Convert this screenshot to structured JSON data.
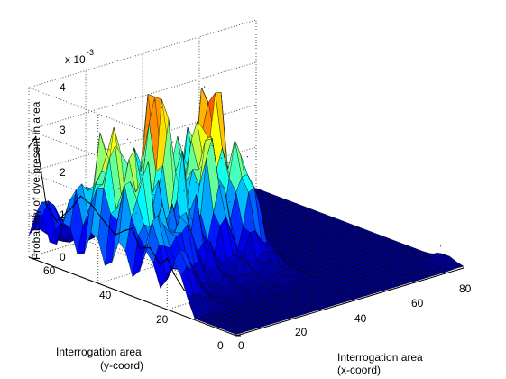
{
  "chart_data": {
    "type": "surface",
    "title": "",
    "zlabel": "Probability of dye present in area",
    "x_axis_label": [
      "Interrogation area",
      "(x-coord)"
    ],
    "y_axis_label": [
      "Interrogation area",
      "(y-coord)"
    ],
    "z_multiplier": {
      "base": "x 10",
      "exponent": "-3"
    },
    "x_range": [
      0,
      80
    ],
    "y_range": [
      0,
      60
    ],
    "z_range": [
      0,
      4
    ],
    "x_ticks": [
      "0",
      "20",
      "40",
      "60",
      "80"
    ],
    "y_ticks": [
      "0",
      "20",
      "40",
      "60"
    ],
    "z_ticks": [
      "0",
      "1",
      "2",
      "3",
      "4"
    ],
    "colormap": [
      "#000080",
      "#0000ff",
      "#00ffff",
      "#ffff00",
      "#ff0000"
    ],
    "grid": true,
    "back_wall_profile": {
      "axis": "y at x=0",
      "y": [
        60,
        58,
        55,
        52,
        48,
        45,
        42,
        38,
        35,
        32,
        30,
        28,
        25,
        22,
        20,
        18,
        15
      ],
      "z": [
        2.6,
        2.9,
        1.4,
        1.1,
        1.5,
        1.9,
        1.8,
        1.5,
        1.3,
        1.5,
        1.6,
        1.2,
        1.3,
        1.0,
        1.2,
        0.9,
        0.6
      ]
    },
    "ridge_profile": {
      "axis": "x at y=38",
      "x": [
        2,
        5,
        8,
        11,
        14,
        17,
        20,
        23,
        26,
        29,
        32,
        35,
        38,
        41,
        44
      ],
      "z": [
        1.3,
        2.2,
        3.3,
        1.5,
        2.7,
        1.6,
        3.8,
        1.4,
        2.6,
        3.1,
        1.8,
        4.0,
        2.6,
        2.2,
        1.1
      ]
    },
    "peaks": [
      {
        "x": 10,
        "y": 45,
        "z": 2.8
      },
      {
        "x": 20,
        "y": 40,
        "z": 3.9
      },
      {
        "x": 33,
        "y": 35,
        "z": 4.1
      },
      {
        "x": 28,
        "y": 30,
        "z": 3.0
      },
      {
        "x": 38,
        "y": 28,
        "z": 2.6
      },
      {
        "x": 12,
        "y": 25,
        "z": 2.4
      },
      {
        "x": 78,
        "y": 5,
        "z": 0.4
      }
    ]
  }
}
